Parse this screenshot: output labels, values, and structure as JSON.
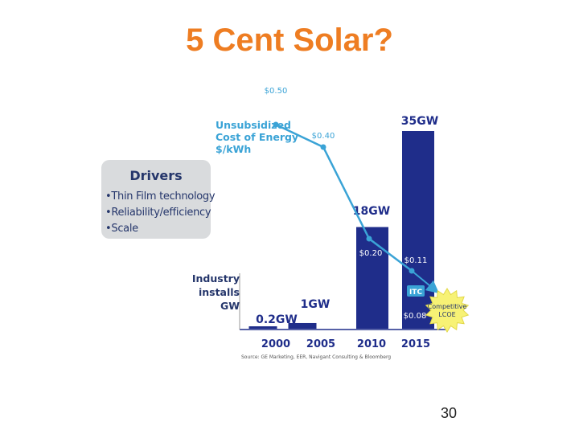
{
  "slide": {
    "title": "5 Cent Solar?",
    "page_number": "30"
  },
  "drivers": {
    "title": "Drivers",
    "items": [
      "•Thin Film technology",
      "•Reliability/efficiency",
      "•Scale"
    ]
  },
  "cost_axis_label": [
    "Unsubsidized",
    "Cost of Energy",
    "$/kWh"
  ],
  "installs_label": [
    "Industry",
    "installs",
    "GW"
  ],
  "source": "Source: GE Marketing, EER, Navigant Consulting & Bloomberg",
  "colors": {
    "title": "#ee7d22",
    "bar": "#1f2d8a",
    "line": "#3aa3d6",
    "drivers_bg": "#d9dbdd",
    "starburst": "#f7f275"
  },
  "chart_data": {
    "type": "bar",
    "categories": [
      "2000",
      "2005",
      "2010",
      "2015"
    ],
    "series": [
      {
        "name": "Industry installs",
        "unit": "GW",
        "values": [
          0.2,
          1,
          18,
          35
        ],
        "labels": [
          "0.2GW",
          "1GW",
          "18GW",
          "35GW"
        ]
      },
      {
        "name": "Unsubsidized Cost of Energy",
        "unit": "$/kWh",
        "type": "line",
        "points": [
          {
            "x": 2000,
            "y": 0.5,
            "label": "$0.50"
          },
          {
            "x": 2004,
            "y": 0.4,
            "label": "$0.40"
          },
          {
            "x": 2010,
            "y": 0.2,
            "label": "$0.20"
          },
          {
            "x": 2015,
            "y": 0.11,
            "label": "$0.11"
          },
          {
            "x": 2015,
            "y": 0.08,
            "label": "$0.08"
          }
        ]
      }
    ],
    "annotations": {
      "itc": "ITC",
      "competitive": [
        "Competitive",
        "LCOE"
      ]
    },
    "ylim_gw": [
      0,
      35
    ],
    "ylim_cost": [
      0.08,
      0.5
    ],
    "title": "5 Cent Solar?",
    "xlabel": "",
    "ylabel": "Industry installs GW"
  }
}
